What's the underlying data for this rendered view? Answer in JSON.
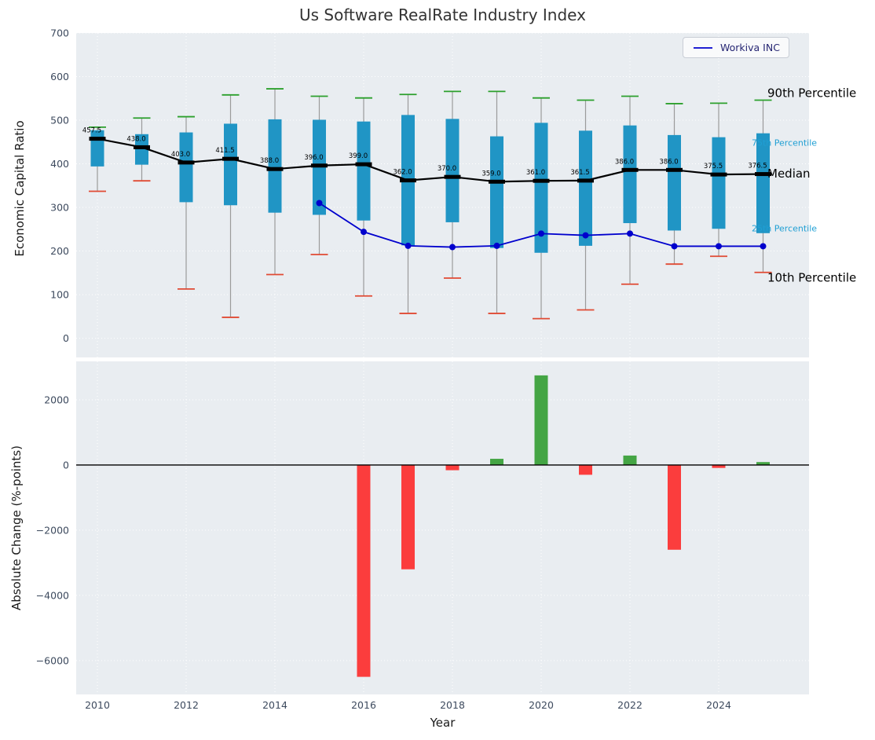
{
  "title": "Us Software RealRate Industry Index",
  "colors": {
    "axes_bg": "#e9edf1",
    "grid": "#ffffff",
    "box_fill": "#2095c5",
    "whisker": "#9b9b9b",
    "cap_high": "#2ca02c",
    "cap_low": "#e04a33",
    "median": "#000000",
    "company_line": "#0000cd",
    "percentile_label": "#1f9fd4",
    "bar_positive": "#44a544",
    "bar_negative": "#fb3d3d",
    "tick_label": "#3d4a5e",
    "zero_line": "#000000"
  },
  "chart_data": [
    {
      "type": "boxplot",
      "title": "Us Software RealRate Industry Index",
      "ylabel": "Economic Capital Ratio",
      "ylim": [
        -44,
        700
      ],
      "yticks": [
        0,
        100,
        200,
        300,
        400,
        500,
        600,
        700
      ],
      "grid": true,
      "legend_position": "upper right",
      "series_name": "Workiva INC",
      "years": [
        2010,
        2011,
        2012,
        2013,
        2014,
        2015,
        2016,
        2017,
        2018,
        2019,
        2020,
        2021,
        2022,
        2023,
        2024,
        2025
      ],
      "p90": [
        484,
        505,
        508,
        558,
        572,
        555,
        551,
        559,
        566,
        566,
        551,
        546,
        555,
        538,
        539,
        546
      ],
      "p75": [
        477,
        468,
        472,
        492,
        502,
        501,
        497,
        512,
        503,
        463,
        494,
        476,
        488,
        466,
        461,
        470
      ],
      "median": [
        457.5,
        438.0,
        403.0,
        411.5,
        388.0,
        396.0,
        399.0,
        362.0,
        370.0,
        359.0,
        361.0,
        361.5,
        386.0,
        386.0,
        375.5,
        376.5
      ],
      "median_labels": [
        "457.5",
        "438.0",
        "403.0",
        "411.5",
        "388.0",
        "396.0",
        "399.0",
        "362.0",
        "370.0",
        "359.0",
        "361.0",
        "361.5",
        "386.0",
        "386.0",
        "375.5",
        "376.5"
      ],
      "p25": [
        394,
        398,
        312,
        305,
        288,
        283,
        270,
        213,
        266,
        207,
        196,
        212,
        264,
        247,
        251,
        241
      ],
      "p10": [
        337,
        361,
        113,
        48,
        146,
        192,
        97,
        57,
        138,
        57,
        45,
        65,
        124,
        170,
        188,
        151
      ],
      "company_series": {
        "name": "Workiva INC",
        "years": [
          2015,
          2016,
          2017,
          2018,
          2019,
          2020,
          2021,
          2022,
          2023,
          2024,
          2025
        ],
        "values": [
          310,
          244,
          212,
          209,
          212,
          240,
          236,
          240,
          211,
          211,
          211
        ]
      },
      "annotations": [
        {
          "text": "90th Percentile",
          "value": 563,
          "x": 977,
          "color": "#000000",
          "size": 15
        },
        {
          "text": "75th Percentile",
          "value": 448,
          "x": 957,
          "color": "#1f9fd4",
          "size": 11
        },
        {
          "text": "Median",
          "value": 378,
          "x": 977,
          "color": "#000000",
          "size": 15
        },
        {
          "text": "25th Percentile",
          "value": 252,
          "x": 957,
          "color": "#1f9fd4",
          "size": 11
        },
        {
          "text": "10th Percentile",
          "value": 139,
          "x": 977,
          "color": "#000000",
          "size": 15
        }
      ]
    },
    {
      "type": "bar",
      "ylabel": "Absolute Change (%-points)",
      "xlabel": "Year",
      "ylim": [
        -7040,
        3180
      ],
      "yticks": [
        2000,
        0,
        -2000,
        -4000,
        -6000
      ],
      "xticks": [
        2010,
        2012,
        2014,
        2016,
        2018,
        2020,
        2022,
        2024
      ],
      "grid": true,
      "years": [
        2016,
        2017,
        2018,
        2019,
        2020,
        2021,
        2022,
        2023,
        2024,
        2025
      ],
      "values": [
        -6500,
        -3200,
        -160,
        190,
        2750,
        -300,
        290,
        -2600,
        -90,
        90
      ]
    }
  ]
}
